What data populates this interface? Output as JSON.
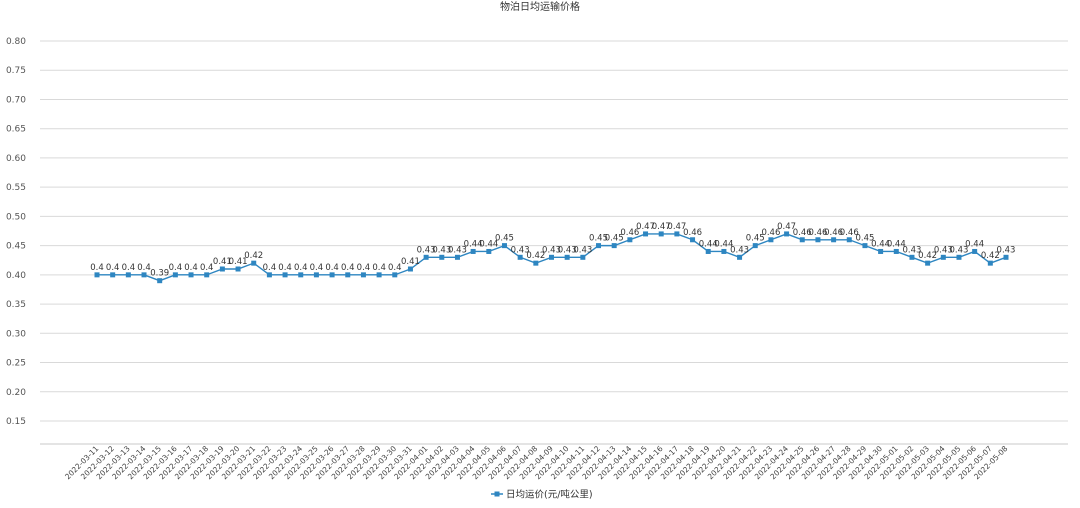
{
  "chart_data": {
    "type": "line",
    "title": "物泊日均运输价格",
    "xlabel": "",
    "ylabel": "",
    "ylim": [
      0.15,
      0.8
    ],
    "yticks": [
      "0.15",
      "0.20",
      "0.25",
      "0.30",
      "0.35",
      "0.40",
      "0.45",
      "0.50",
      "0.55",
      "0.60",
      "0.65",
      "0.70",
      "0.75",
      "0.80"
    ],
    "grid": true,
    "legend_position": "bottom-center",
    "series_color": "#2e86c1",
    "categories": [
      "2022-03-11",
      "2022-03-12",
      "2022-03-13",
      "2022-03-14",
      "2022-03-15",
      "2022-03-16",
      "2022-03-17",
      "2022-03-18",
      "2022-03-19",
      "2022-03-20",
      "2022-03-21",
      "2022-03-22",
      "2022-03-23",
      "2022-03-24",
      "2022-03-25",
      "2022-03-26",
      "2022-03-27",
      "2022-03-28",
      "2022-03-29",
      "2022-03-30",
      "2022-03-31",
      "2022-04-01",
      "2022-04-02",
      "2022-04-03",
      "2022-04-04",
      "2022-04-05",
      "2022-04-06",
      "2022-04-07",
      "2022-04-08",
      "2022-04-09",
      "2022-04-10",
      "2022-04-11",
      "2022-04-12",
      "2022-04-13",
      "2022-04-14",
      "2022-04-15",
      "2022-04-16",
      "2022-04-17",
      "2022-04-18",
      "2022-04-19",
      "2022-04-20",
      "2022-04-21",
      "2022-04-22",
      "2022-04-23",
      "2022-04-24",
      "2022-04-25",
      "2022-04-26",
      "2022-04-27",
      "2022-04-28",
      "2022-04-29",
      "2022-04-30",
      "2022-05-01",
      "2022-05-02",
      "2022-05-03",
      "2022-05-04",
      "2022-05-05",
      "2022-05-06",
      "2022-05-07",
      "2022-05-08"
    ],
    "series": [
      {
        "name": "日均运价(元/吨公里)",
        "values": [
          0.4,
          0.4,
          0.4,
          0.4,
          0.39,
          0.4,
          0.4,
          0.4,
          0.41,
          0.41,
          0.42,
          0.4,
          0.4,
          0.4,
          0.4,
          0.4,
          0.4,
          0.4,
          0.4,
          0.4,
          0.41,
          0.43,
          0.43,
          0.43,
          0.44,
          0.44,
          0.45,
          0.43,
          0.42,
          0.43,
          0.43,
          0.43,
          0.45,
          0.45,
          0.46,
          0.47,
          0.47,
          0.47,
          0.46,
          0.44,
          0.44,
          0.43,
          0.45,
          0.46,
          0.47,
          0.46,
          0.46,
          0.46,
          0.46,
          0.45,
          0.44,
          0.44,
          0.43,
          0.42,
          0.43,
          0.43,
          0.44,
          0.42,
          0.43
        ],
        "labels": [
          "0.4",
          "0.4",
          "0.4",
          "0.4",
          "0.39",
          "0.4",
          "0.4",
          "0.4",
          "0.41",
          "0.41",
          "0.42",
          "0.4",
          "0.4",
          "0.4",
          "0.4",
          "0.4",
          "0.4",
          "0.4",
          "0.4",
          "0.4",
          "0.41",
          "0.43",
          "0.43",
          "0.43",
          "0.44",
          "0.44",
          "0.45",
          "0.43",
          "0.42",
          "0.43",
          "0.43",
          "0.43",
          "0.45",
          "0.45",
          "0.46",
          "0.47",
          "0.47",
          "0.47",
          "0.46",
          "0.44",
          "0.44",
          "0.43",
          "0.45",
          "0.46",
          "0.47",
          "0.46",
          "0.46",
          "0.46",
          "0.46",
          "0.45",
          "0.44",
          "0.44",
          "0.43",
          "0.42",
          "0.43",
          "0.43",
          "0.44",
          "0.42",
          "0.43"
        ]
      }
    ]
  }
}
